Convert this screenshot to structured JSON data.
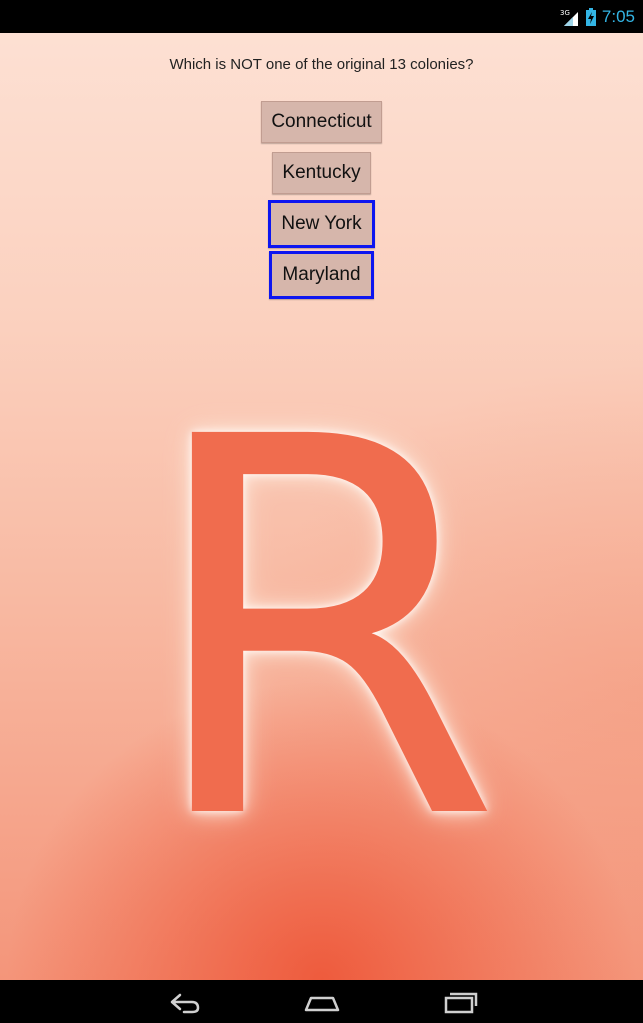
{
  "status_bar": {
    "network_type": "3G",
    "time": "7:05",
    "accent_color": "#33b5e5"
  },
  "quiz": {
    "question": "Which is NOT one of the original 13 colonies?",
    "answers": [
      {
        "label": "Connecticut",
        "selected": false
      },
      {
        "label": "Kentucky",
        "selected": false
      },
      {
        "label": "New York",
        "selected": true
      },
      {
        "label": "Maryland",
        "selected": true
      }
    ],
    "highlight_color": "#0d16f0"
  },
  "background": {
    "letter": "R",
    "letter_color": "#f06c4e"
  },
  "nav_bar": {
    "icons": [
      "back-icon",
      "home-icon",
      "recent-apps-icon"
    ]
  }
}
